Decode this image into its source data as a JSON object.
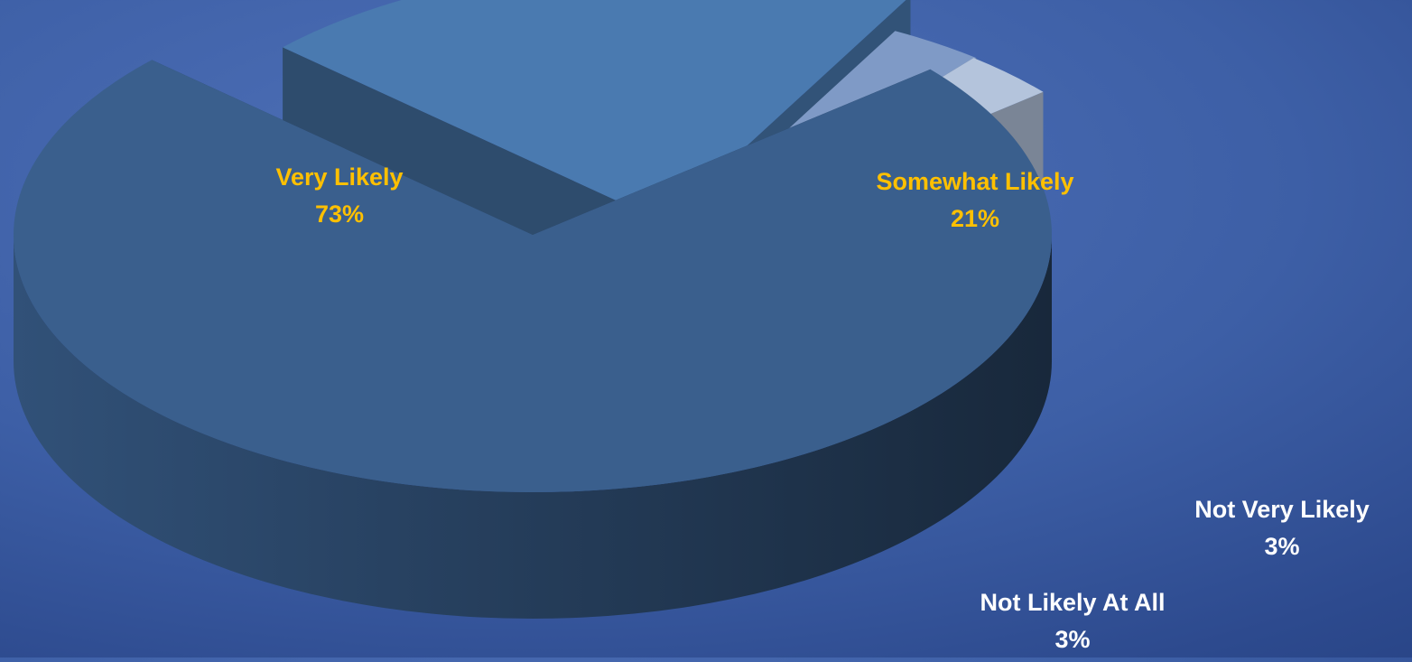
{
  "chart_data": {
    "type": "pie",
    "style": "3d-exploded",
    "title": "",
    "slices": [
      {
        "label": "Very Likely",
        "value": 73,
        "display": "73%",
        "color": "#3a5f8d",
        "label_color": "#ffc000"
      },
      {
        "label": "Somewhat Likely",
        "value": 21,
        "display": "21%",
        "color": "#4a7ab0",
        "label_color": "#ffc000"
      },
      {
        "label": "Not Very Likely",
        "value": 3,
        "display": "3%",
        "color": "#7f9ac6",
        "label_color": "#ffffff"
      },
      {
        "label": "Not Likely At All",
        "value": 3,
        "display": "3%",
        "color": "#b4c4dc",
        "label_color": "#ffffff"
      }
    ],
    "legend": "none",
    "data_labels": "category-and-percent"
  }
}
